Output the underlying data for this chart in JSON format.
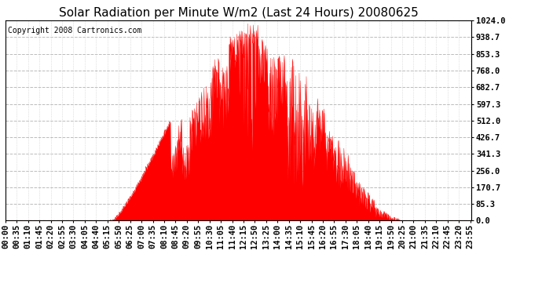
{
  "title": "Solar Radiation per Minute W/m2 (Last 24 Hours) 20080625",
  "copyright": "Copyright 2008 Cartronics.com",
  "y_ticks": [
    0.0,
    85.3,
    170.7,
    256.0,
    341.3,
    426.7,
    512.0,
    597.3,
    682.7,
    768.0,
    853.3,
    938.7,
    1024.0
  ],
  "ylim": [
    0.0,
    1024.0
  ],
  "fill_color": "#ff0000",
  "line_color": "#ff0000",
  "bg_color": "#ffffff",
  "grid_color": "#bbbbbb",
  "border_color": "#000000",
  "dashed_line_color": "#ff0000",
  "title_fontsize": 11,
  "copyright_fontsize": 7,
  "tick_fontsize": 7.5,
  "num_points": 1440
}
